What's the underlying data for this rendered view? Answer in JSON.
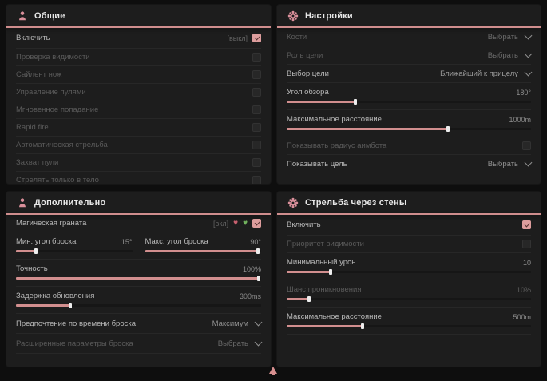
{
  "colors": {
    "accent_pink": "#d28f8f",
    "accent_green": "#72b35e",
    "panel_bg": "#1d1d1d",
    "page_bg": "#0e0e0e"
  },
  "panels": {
    "general": {
      "title": "Общие",
      "icon": "person-icon",
      "rows": [
        {
          "label": "Включить",
          "tag": "[выкл]",
          "checked": true
        },
        {
          "label": "Проверка видимости",
          "checked": false,
          "dim": true
        },
        {
          "label": "Сайлент нож",
          "checked": false,
          "dim": true
        },
        {
          "label": "Управление пулями",
          "checked": false,
          "dim": true
        },
        {
          "label": "Мгновенное попадание",
          "checked": false,
          "dim": true
        },
        {
          "label": "Rapid fire",
          "checked": false,
          "dim": true
        },
        {
          "label": "Автоматическая стрельба",
          "checked": false,
          "dim": true
        },
        {
          "label": "Захват пули",
          "checked": false,
          "dim": true
        },
        {
          "label": "Стрелять только в тело",
          "checked": false,
          "dim": true
        }
      ]
    },
    "settings": {
      "title": "Настройки",
      "icon": "gear-icon",
      "rows": {
        "bones": {
          "label": "Кости",
          "value": "Выбрать",
          "dim": true
        },
        "target_role": {
          "label": "Роль цели",
          "value": "Выбрать",
          "dim": true
        },
        "target_select": {
          "label": "Выбор цели",
          "value": "Ближайший к прицелу"
        },
        "fov": {
          "label": "Угол обзора",
          "value": "180°",
          "fill": 28
        },
        "max_distance": {
          "label": "Максимальное расстояние",
          "value": "1000m",
          "fill": 66
        },
        "show_radius": {
          "label": "Показывать радиус аимбота",
          "checked": false,
          "dim": true
        },
        "show_target": {
          "label": "Показывать цель",
          "value": "Выбрать"
        }
      }
    },
    "additional": {
      "title": "Дополнительно",
      "icon": "person-icon",
      "rows": {
        "magic_grenade": {
          "label": "Магическая граната",
          "tag": "[вкл]",
          "checked": true
        },
        "min_throw_angle": {
          "label": "Мин. угол броска",
          "value": "15°",
          "fill": 17
        },
        "max_throw_angle": {
          "label": "Макс. угол броска",
          "value": "90°",
          "fill": 97
        },
        "accuracy": {
          "label": "Точность",
          "value": "100%",
          "fill": 99
        },
        "update_delay": {
          "label": "Задержка обновления",
          "value": "300ms",
          "fill": 22
        },
        "throw_time_pref": {
          "label": "Предпочтение по времени броска",
          "value": "Максимум"
        },
        "extended_params": {
          "label": "Расширенные параметры броска",
          "value": "Выбрать",
          "dim": true
        }
      }
    },
    "wallshoot": {
      "title": "Стрельба через стены",
      "icon": "gear-icon",
      "rows": {
        "enable": {
          "label": "Включить",
          "checked": true
        },
        "visibility_priority": {
          "label": "Приоритет видимости",
          "checked": false,
          "dim": true
        },
        "min_damage": {
          "label": "Минимальный урон",
          "value": "10",
          "fill": 18
        },
        "penetration_chance": {
          "label": "Шанс проникновения",
          "value": "10%",
          "fill": 9,
          "dim": true
        },
        "max_distance": {
          "label": "Максимальное расстояние",
          "value": "500m",
          "fill": 31
        }
      }
    }
  }
}
